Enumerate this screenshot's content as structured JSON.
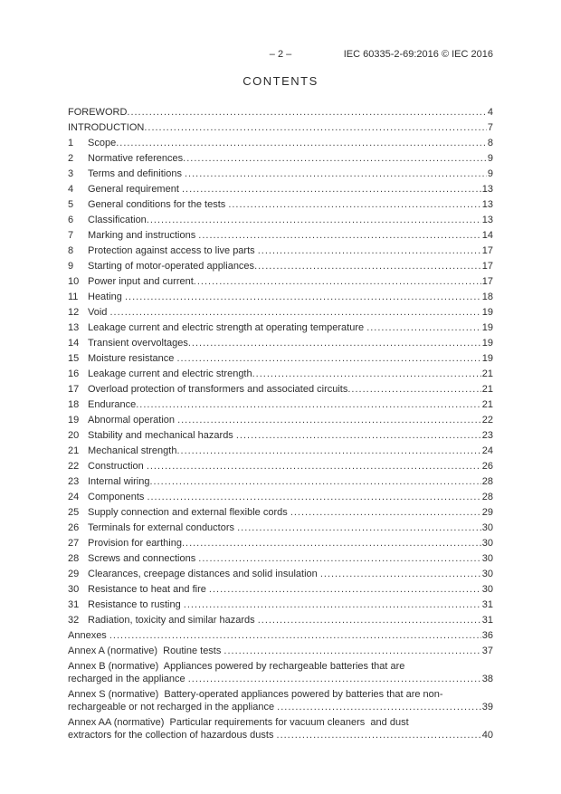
{
  "header": {
    "page_marker": "– 2 –",
    "doc_ref": "IEC 60335-2-69:2016 © IEC 2016"
  },
  "title": "CONTENTS",
  "toc": {
    "entries": [
      {
        "text": "FOREWORD",
        "page": "4"
      },
      {
        "text": "INTRODUCTION",
        "page": "7"
      },
      {
        "num": "1",
        "text": "Scope",
        "page": "8"
      },
      {
        "num": "2",
        "text": "Normative references",
        "page": "9"
      },
      {
        "num": "3",
        "text": "Terms and definitions ",
        "page": "9"
      },
      {
        "num": "4",
        "text": "General requirement ",
        "page": "13"
      },
      {
        "num": "5",
        "text": "General conditions for the tests ",
        "page": "13"
      },
      {
        "num": "6",
        "text": "Classification",
        "page": "13"
      },
      {
        "num": "7",
        "text": "Marking and instructions ",
        "page": "14"
      },
      {
        "num": "8",
        "text": "Protection against access to live parts ",
        "page": "17"
      },
      {
        "num": "9",
        "text": "Starting of motor-operated appliances",
        "page": "17"
      },
      {
        "num": "10",
        "text": "Power input and current",
        "page": "17"
      },
      {
        "num": "11",
        "text": "Heating ",
        "page": "18"
      },
      {
        "num": "12",
        "text": "Void ",
        "page": "19"
      },
      {
        "num": "13",
        "text": "Leakage current and electric strength at operating temperature ",
        "page": "19"
      },
      {
        "num": "14",
        "text": "Transient overvoltages",
        "page": "19"
      },
      {
        "num": "15",
        "text": "Moisture resistance ",
        "page": "19"
      },
      {
        "num": "16",
        "text": "Leakage current and electric strength",
        "page": "21"
      },
      {
        "num": "17",
        "text": "Overload protection of transformers and associated circuits",
        "page": "21"
      },
      {
        "num": "18",
        "text": "Endurance",
        "page": "21"
      },
      {
        "num": "19",
        "text": "Abnormal operation ",
        "page": "22"
      },
      {
        "num": "20",
        "text": "Stability and mechanical hazards ",
        "page": "23"
      },
      {
        "num": "21",
        "text": "Mechanical strength",
        "page": "24"
      },
      {
        "num": "22",
        "text": "Construction ",
        "page": "26"
      },
      {
        "num": "23",
        "text": "Internal wiring",
        "page": "28"
      },
      {
        "num": "24",
        "text": "Components ",
        "page": "28"
      },
      {
        "num": "25",
        "text": "Supply connection and external flexible cords ",
        "page": "29"
      },
      {
        "num": "26",
        "text": "Terminals for external conductors ",
        "page": "30"
      },
      {
        "num": "27",
        "text": "Provision for earthing",
        "page": "30"
      },
      {
        "num": "28",
        "text": "Screws and connections ",
        "page": "30"
      },
      {
        "num": "29",
        "text": "Clearances, creepage distances and solid insulation ",
        "page": "30"
      },
      {
        "num": "30",
        "text": "Resistance to heat and fire ",
        "page": "30"
      },
      {
        "num": "31",
        "text": "Resistance to rusting ",
        "page": "31"
      },
      {
        "num": "32",
        "text": "Radiation, toxicity and similar hazards ",
        "page": "31"
      },
      {
        "text": "Annexes ",
        "page": "36"
      },
      {
        "text": "Annex A (normative)  Routine tests ",
        "page": "37"
      },
      {
        "text": "Annex B (normative)  Appliances powered by rechargeable batteries that are",
        "text2": "recharged in the appliance ",
        "page": "38"
      },
      {
        "text": "Annex S (normative)  Battery-operated appliances powered by batteries that are non-",
        "text2": "rechargeable or not recharged in the appliance ",
        "page": "39"
      },
      {
        "text": "Annex AA (normative)  Particular requirements for vacuum cleaners  and dust",
        "text2": "extractors for the collection of hazardous dusts ",
        "page": "40"
      }
    ]
  }
}
